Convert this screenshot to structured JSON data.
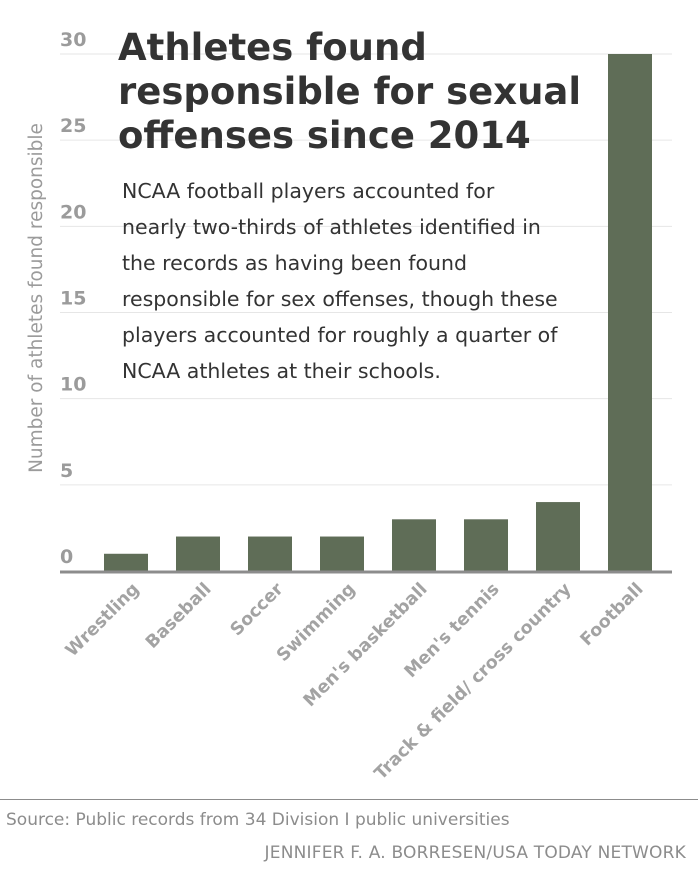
{
  "chart_data": {
    "type": "bar",
    "title": "Athletes found responsible for sexual offenses since 2014",
    "subtitle": "NCAA football players accounted for nearly two-thirds of athletes identified in the records as having been found responsible for sex offenses, though these players accounted for roughly a quarter of NCAA athletes at their schools.",
    "ylabel": "Number of athletes found responsible",
    "xlabel": "",
    "categories": [
      "Wrestling",
      "Baseball",
      "Soccer",
      "Swimming",
      "Men's basketball",
      "Men's tennis",
      "Track & field/ cross country",
      "Football"
    ],
    "values": [
      1,
      2,
      2,
      2,
      3,
      3,
      4,
      30
    ],
    "yticks": [
      "0",
      "5",
      "10",
      "15",
      "20",
      "25",
      "30"
    ],
    "ylim": [
      0,
      31
    ],
    "grid": true,
    "bar_color": "#5f6d57",
    "grid_color": "#e6e6e6",
    "axis_color": "#8c8c8c"
  },
  "footer": {
    "source": "Source: Public records from 34 Division I public universities",
    "credit": "JENNIFER F. A. BORRESEN/USA TODAY NETWORK"
  }
}
